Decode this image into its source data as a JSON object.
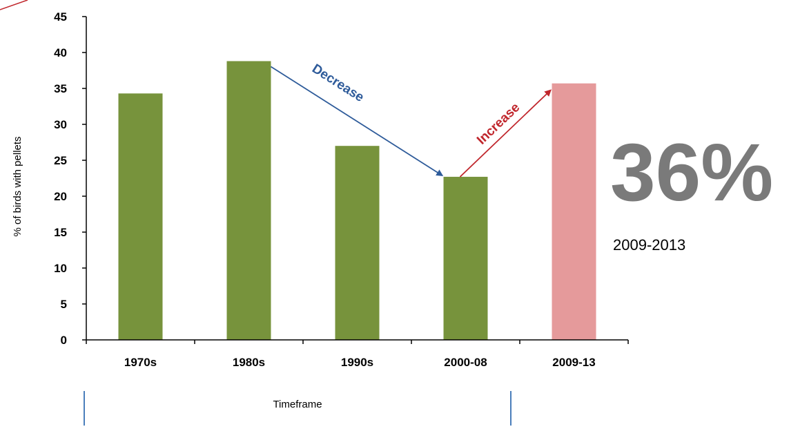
{
  "chart_data": {
    "type": "bar",
    "categories": [
      "1970s",
      "1980s",
      "1990s",
      "2000-08",
      "2009-13"
    ],
    "values": [
      34.3,
      38.8,
      27.0,
      22.7,
      35.7
    ],
    "bar_colors": [
      "#77933c",
      "#77933c",
      "#77933c",
      "#77933c",
      "#e59a9b"
    ],
    "xlabel": "Timeframe",
    "ylabel": "% of birds with pellets",
    "ylim": [
      0,
      45
    ],
    "yticks": [
      0,
      5,
      10,
      15,
      20,
      25,
      30,
      35,
      40,
      45
    ],
    "grid": false,
    "annotations": [
      {
        "text": "Decrease",
        "from_category": "1980s",
        "to_category": "2000-08",
        "color": "#2e5b9a"
      },
      {
        "text": "Increase",
        "from_category": "2000-08",
        "to_category": "2009-13",
        "color": "#c0262c"
      }
    ]
  },
  "highlight": {
    "value_text": "36%",
    "period_text": "2009-2013"
  }
}
